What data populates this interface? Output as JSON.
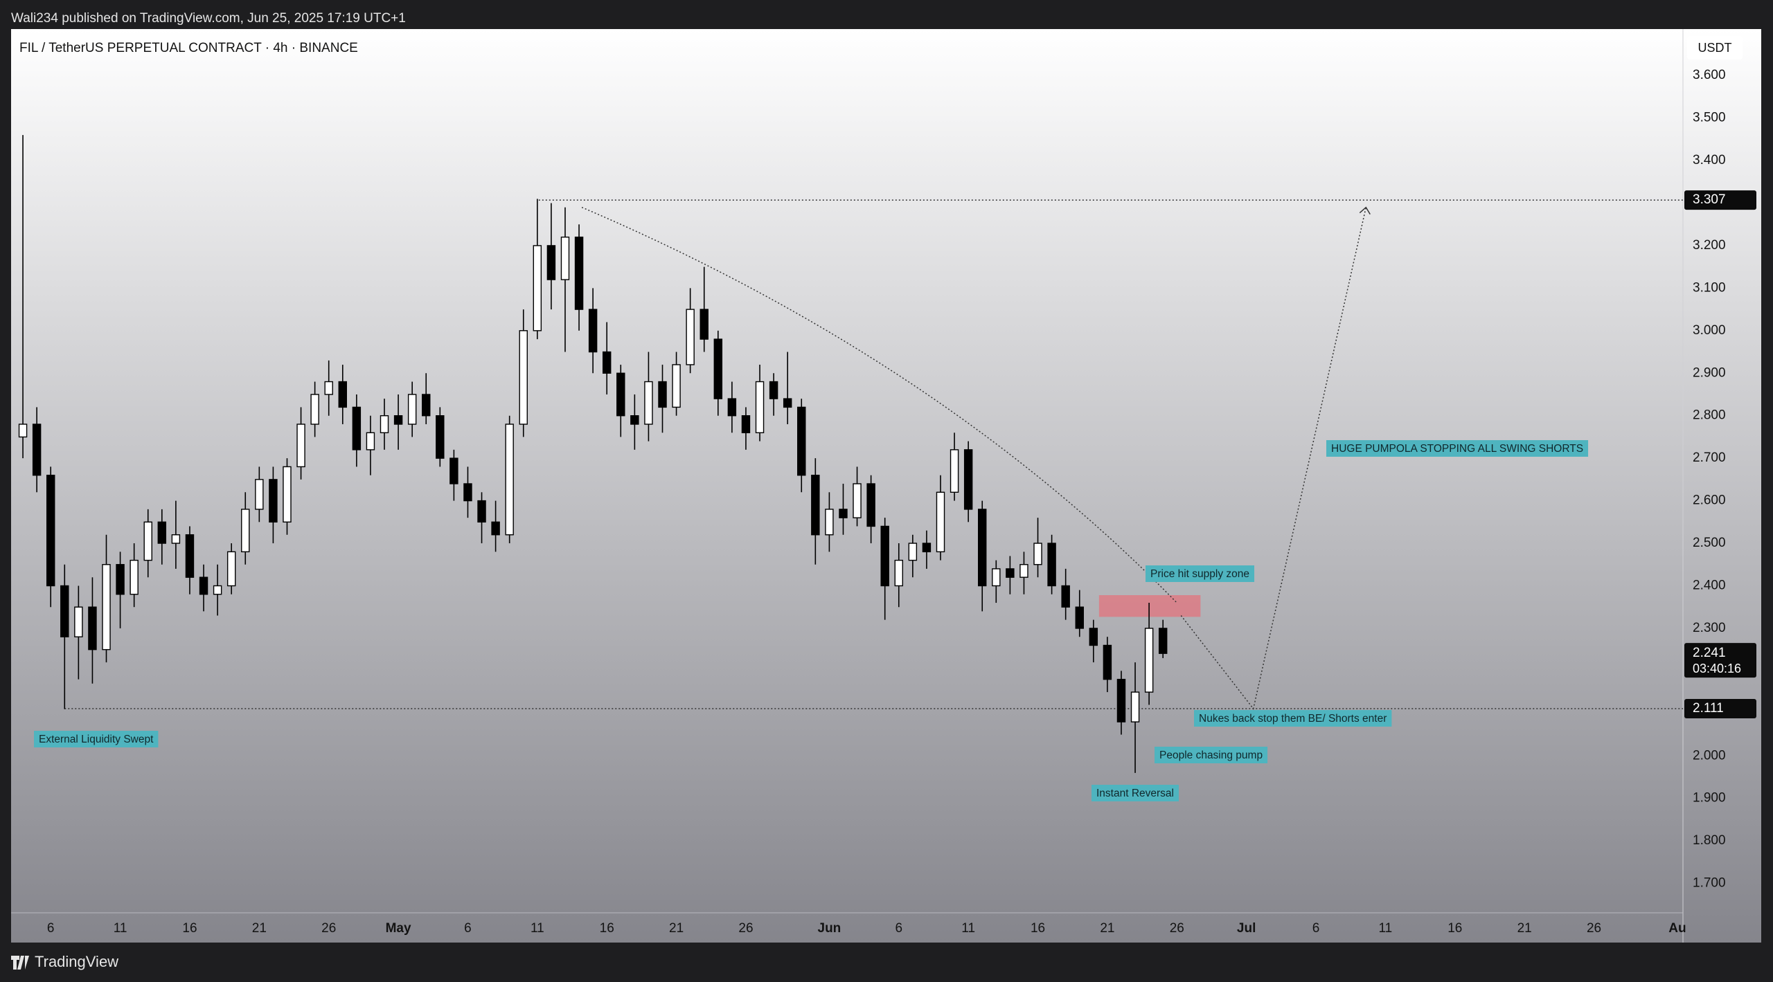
{
  "header": {
    "published": "Wali234 published on TradingView.com, Jun 25, 2025 17:19 UTC+1",
    "brand": "TradingView"
  },
  "chart_data": {
    "type": "candlestick",
    "title": "FIL / TetherUS PERPETUAL CONTRACT · 4h · BINANCE",
    "currency": "USDT",
    "x": [
      4,
      5,
      6,
      7,
      8,
      9,
      10,
      11,
      12,
      13,
      14,
      15,
      16,
      17,
      18,
      19,
      20,
      21,
      22,
      23,
      24,
      25,
      26,
      27,
      28,
      29,
      30,
      31,
      32,
      33,
      34,
      35,
      36,
      37,
      38,
      39,
      40,
      41,
      42,
      43,
      44,
      45,
      46,
      47,
      48,
      49,
      50,
      51,
      52,
      53,
      54,
      55,
      56,
      57,
      58,
      59,
      60,
      61,
      62,
      63,
      64,
      65,
      66,
      67,
      68,
      69,
      70,
      71,
      72,
      73,
      74,
      75,
      76,
      77,
      78,
      79,
      80,
      81,
      82,
      83,
      84,
      85,
      86
    ],
    "open": [
      2.75,
      2.78,
      2.66,
      2.4,
      2.28,
      2.35,
      2.25,
      2.45,
      2.38,
      2.46,
      2.55,
      2.5,
      2.52,
      2.42,
      2.38,
      2.4,
      2.48,
      2.58,
      2.65,
      2.55,
      2.68,
      2.78,
      2.85,
      2.88,
      2.82,
      2.72,
      2.76,
      2.8,
      2.78,
      2.85,
      2.8,
      2.7,
      2.64,
      2.6,
      2.55,
      2.52,
      2.78,
      3.0,
      3.2,
      3.12,
      3.22,
      3.05,
      2.95,
      2.9,
      2.8,
      2.78,
      2.88,
      2.82,
      2.92,
      3.05,
      2.98,
      2.84,
      2.8,
      2.76,
      2.88,
      2.84,
      2.82,
      2.66,
      2.52,
      2.58,
      2.56,
      2.64,
      2.54,
      2.4,
      2.46,
      2.5,
      2.48,
      2.62,
      2.72,
      2.58,
      2.4,
      2.44,
      2.42,
      2.45,
      2.5,
      2.4,
      2.35,
      2.3,
      2.26,
      2.18,
      2.08,
      2.15,
      2.3
    ],
    "high": [
      3.46,
      2.82,
      2.68,
      2.45,
      2.4,
      2.42,
      2.52,
      2.48,
      2.5,
      2.58,
      2.58,
      2.6,
      2.54,
      2.45,
      2.45,
      2.5,
      2.62,
      2.68,
      2.68,
      2.7,
      2.82,
      2.88,
      2.93,
      2.92,
      2.85,
      2.8,
      2.84,
      2.85,
      2.88,
      2.9,
      2.82,
      2.72,
      2.68,
      2.62,
      2.6,
      2.8,
      3.05,
      3.31,
      3.3,
      3.29,
      3.25,
      3.1,
      3.02,
      2.92,
      2.85,
      2.95,
      2.92,
      2.95,
      3.1,
      3.15,
      3.0,
      2.88,
      2.82,
      2.92,
      2.9,
      2.95,
      2.84,
      2.7,
      2.62,
      2.64,
      2.68,
      2.66,
      2.56,
      2.5,
      2.52,
      2.53,
      2.66,
      2.76,
      2.74,
      2.6,
      2.46,
      2.47,
      2.48,
      2.56,
      2.52,
      2.44,
      2.39,
      2.32,
      2.28,
      2.2,
      2.22,
      2.36,
      2.32
    ],
    "low": [
      2.7,
      2.62,
      2.35,
      2.11,
      2.18,
      2.17,
      2.22,
      2.3,
      2.35,
      2.42,
      2.45,
      2.44,
      2.38,
      2.34,
      2.33,
      2.38,
      2.45,
      2.55,
      2.5,
      2.52,
      2.65,
      2.75,
      2.8,
      2.78,
      2.68,
      2.66,
      2.72,
      2.72,
      2.75,
      2.78,
      2.68,
      2.6,
      2.56,
      2.5,
      2.48,
      2.5,
      2.75,
      2.98,
      3.05,
      2.95,
      3.0,
      2.9,
      2.85,
      2.75,
      2.72,
      2.74,
      2.76,
      2.8,
      2.9,
      2.95,
      2.8,
      2.76,
      2.72,
      2.74,
      2.8,
      2.78,
      2.62,
      2.45,
      2.48,
      2.52,
      2.54,
      2.5,
      2.32,
      2.35,
      2.42,
      2.44,
      2.46,
      2.6,
      2.55,
      2.34,
      2.36,
      2.38,
      2.38,
      2.42,
      2.38,
      2.32,
      2.28,
      2.22,
      2.15,
      2.05,
      1.96,
      2.12,
      2.23
    ],
    "close": [
      2.78,
      2.66,
      2.4,
      2.28,
      2.35,
      2.25,
      2.45,
      2.38,
      2.46,
      2.55,
      2.5,
      2.52,
      2.42,
      2.38,
      2.4,
      2.48,
      2.58,
      2.65,
      2.55,
      2.68,
      2.78,
      2.85,
      2.88,
      2.82,
      2.72,
      2.76,
      2.8,
      2.78,
      2.85,
      2.8,
      2.7,
      2.64,
      2.6,
      2.55,
      2.52,
      2.78,
      3.0,
      3.2,
      3.12,
      3.22,
      3.05,
      2.95,
      2.9,
      2.8,
      2.78,
      2.88,
      2.82,
      2.92,
      3.05,
      2.98,
      2.84,
      2.8,
      2.76,
      2.88,
      2.84,
      2.82,
      2.66,
      2.52,
      2.58,
      2.56,
      2.64,
      2.54,
      2.4,
      2.46,
      2.5,
      2.48,
      2.62,
      2.72,
      2.58,
      2.4,
      2.44,
      2.42,
      2.45,
      2.5,
      2.4,
      2.35,
      2.3,
      2.26,
      2.18,
      2.08,
      2.15,
      2.3,
      2.241
    ],
    "last_price": 2.241,
    "countdown": "03:40:16",
    "levels": [
      3.307,
      2.111
    ],
    "xlim": [
      3.15,
      123.4
    ],
    "ylim": [
      1.631,
      3.706
    ],
    "xticks": [
      {
        "value": 6,
        "label": "6"
      },
      {
        "value": 11,
        "label": "11"
      },
      {
        "value": 16,
        "label": "16"
      },
      {
        "value": 21,
        "label": "21"
      },
      {
        "value": 26,
        "label": "26"
      },
      {
        "value": 31,
        "label": "May"
      },
      {
        "value": 36,
        "label": "6"
      },
      {
        "value": 41,
        "label": "11"
      },
      {
        "value": 46,
        "label": "16"
      },
      {
        "value": 51,
        "label": "21"
      },
      {
        "value": 56,
        "label": "26"
      },
      {
        "value": 62,
        "label": "Jun"
      },
      {
        "value": 67,
        "label": "6"
      },
      {
        "value": 72,
        "label": "11"
      },
      {
        "value": 77,
        "label": "16"
      },
      {
        "value": 82,
        "label": "21"
      },
      {
        "value": 87,
        "label": "26"
      },
      {
        "value": 92,
        "label": "Jul"
      },
      {
        "value": 97,
        "label": "6"
      },
      {
        "value": 102,
        "label": "11"
      },
      {
        "value": 107,
        "label": "16"
      },
      {
        "value": 112,
        "label": "21"
      },
      {
        "value": 117,
        "label": "26"
      },
      {
        "value": 123,
        "label": "Au"
      }
    ],
    "yticks": [
      {
        "value": 1.7,
        "label": "1.700"
      },
      {
        "value": 1.8,
        "label": "1.800"
      },
      {
        "value": 1.9,
        "label": "1.900"
      },
      {
        "value": 2.0,
        "label": "2.000"
      },
      {
        "value": 2.3,
        "label": "2.300"
      },
      {
        "value": 2.4,
        "label": "2.400"
      },
      {
        "value": 2.5,
        "label": "2.500"
      },
      {
        "value": 2.6,
        "label": "2.600"
      },
      {
        "value": 2.7,
        "label": "2.700"
      },
      {
        "value": 2.8,
        "label": "2.800"
      },
      {
        "value": 2.9,
        "label": "2.900"
      },
      {
        "value": 3.0,
        "label": "3.000"
      },
      {
        "value": 3.1,
        "label": "3.100"
      },
      {
        "value": 3.2,
        "label": "3.200"
      },
      {
        "value": 3.4,
        "label": "3.400"
      },
      {
        "value": 3.5,
        "label": "3.500"
      },
      {
        "value": 3.6,
        "label": "3.600"
      }
    ],
    "candle_color": "#000000",
    "annotations": [
      "External Liquidity Swept",
      "Price hit supply zone",
      "HUGE PUMPOLA STOPPING ALL SWING SHORTS",
      "Nukes back stop them BE/ Shorts enter",
      "People chasing pump",
      "Instant Reversal"
    ]
  }
}
